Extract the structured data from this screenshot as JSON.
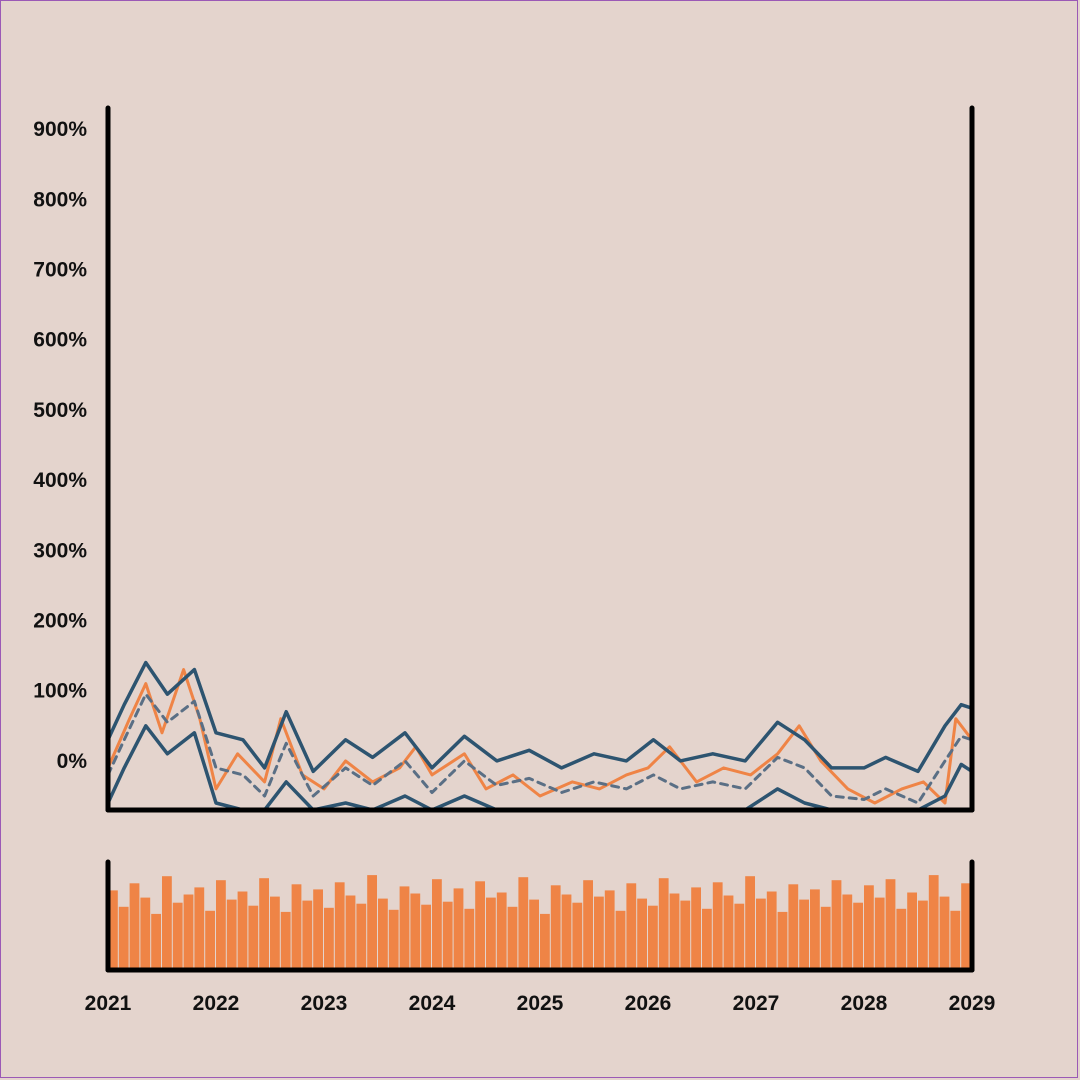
{
  "colors": {
    "background": "#e4d4cd",
    "raw_series": "#ef8446",
    "band": "#2d5470",
    "mean": "#5a6f85",
    "bars": "#ef8446",
    "axes": "#000000"
  },
  "chart_data": [
    {
      "type": "line",
      "title": "",
      "xlabel": "",
      "ylabel": "",
      "ylim": [
        -70,
        930
      ],
      "xlim": [
        2021,
        2029
      ],
      "y_ticks": [
        0,
        100,
        200,
        300,
        400,
        500,
        600,
        700,
        800,
        900
      ],
      "y_tick_labels": [
        "0%",
        "100%",
        "200%",
        "300%",
        "400%",
        "500%",
        "600%",
        "700%",
        "800%",
        "900%"
      ],
      "grid": false,
      "series": [
        {
          "role": "raw",
          "x": [
            2021.0,
            2021.2,
            2021.35,
            2021.5,
            2021.7,
            2021.85,
            2022.0,
            2022.2,
            2022.45,
            2022.6,
            2022.8,
            2023.0,
            2023.2,
            2023.45,
            2023.7,
            2023.85,
            2024.0,
            2024.3,
            2024.5,
            2024.75,
            2025.0,
            2025.3,
            2025.55,
            2025.8,
            2026.0,
            2026.2,
            2026.45,
            2026.7,
            2026.95,
            2027.2,
            2027.4,
            2027.6,
            2027.85,
            2028.1,
            2028.35,
            2028.55,
            2028.75,
            2028.85,
            2029.0
          ],
          "y": [
            -10,
            60,
            110,
            40,
            130,
            60,
            -40,
            10,
            -30,
            60,
            -20,
            -40,
            0,
            -30,
            -10,
            20,
            -20,
            10,
            -40,
            -20,
            -50,
            -30,
            -40,
            -20,
            -10,
            20,
            -30,
            -10,
            -20,
            10,
            50,
            0,
            -40,
            -60,
            -40,
            -30,
            -60,
            60,
            30
          ]
        },
        {
          "role": "upper-band",
          "x": [
            2021.0,
            2021.15,
            2021.35,
            2021.55,
            2021.8,
            2022.0,
            2022.25,
            2022.45,
            2022.65,
            2022.9,
            2023.2,
            2023.45,
            2023.75,
            2024.0,
            2024.3,
            2024.6,
            2024.9,
            2025.2,
            2025.5,
            2025.8,
            2026.05,
            2026.3,
            2026.6,
            2026.9,
            2027.2,
            2027.45,
            2027.7,
            2028.0,
            2028.2,
            2028.5,
            2028.75,
            2028.9,
            2029.0
          ],
          "y": [
            30,
            80,
            140,
            95,
            130,
            40,
            30,
            -10,
            70,
            -15,
            30,
            5,
            40,
            -10,
            35,
            0,
            15,
            -10,
            10,
            0,
            30,
            0,
            10,
            0,
            55,
            30,
            -10,
            -10,
            5,
            -15,
            50,
            80,
            75
          ]
        },
        {
          "role": "mean",
          "x": [
            2021.0,
            2021.15,
            2021.35,
            2021.55,
            2021.8,
            2022.0,
            2022.25,
            2022.45,
            2022.65,
            2022.9,
            2023.2,
            2023.45,
            2023.75,
            2024.0,
            2024.3,
            2024.6,
            2024.9,
            2025.2,
            2025.5,
            2025.8,
            2026.05,
            2026.3,
            2026.6,
            2026.9,
            2027.2,
            2027.45,
            2027.7,
            2028.0,
            2028.2,
            2028.5,
            2028.75,
            2028.9,
            2029.0
          ],
          "y": [
            -20,
            30,
            95,
            55,
            85,
            -10,
            -20,
            -50,
            25,
            -50,
            -10,
            -35,
            0,
            -45,
            0,
            -35,
            -25,
            -45,
            -30,
            -40,
            -20,
            -40,
            -30,
            -40,
            5,
            -10,
            -50,
            -55,
            -40,
            -60,
            0,
            35,
            30
          ]
        },
        {
          "role": "lower-band",
          "x": [
            2021.0,
            2021.15,
            2021.35,
            2021.55,
            2021.8,
            2022.0,
            2022.25,
            2022.45,
            2022.65,
            2022.9,
            2023.2,
            2023.45,
            2023.75,
            2024.0,
            2024.3,
            2024.6,
            2024.9,
            2025.2,
            2025.5,
            2025.8,
            2026.05,
            2026.3,
            2026.6,
            2026.9,
            2027.2,
            2027.45,
            2027.7,
            2028.0,
            2028.2,
            2028.5,
            2028.75,
            2028.9,
            2029.0
          ],
          "y": [
            -60,
            -10,
            50,
            10,
            40,
            -60,
            -70,
            -70,
            -30,
            -70,
            -60,
            -70,
            -50,
            -70,
            -50,
            -70,
            -70,
            -70,
            -70,
            -70,
            -70,
            -70,
            -70,
            -70,
            -40,
            -60,
            -70,
            -70,
            -70,
            -70,
            -50,
            -5,
            -15
          ]
        }
      ]
    },
    {
      "type": "bar",
      "role": "navigator",
      "xlabel": "",
      "ylabel": "",
      "x_tick_labels": [
        "2021",
        "2022",
        "2023",
        "2024",
        "2025",
        "2026",
        "2027",
        "2028",
        "2029"
      ],
      "ylim": [
        0,
        1
      ],
      "values": [
        0.78,
        0.62,
        0.85,
        0.71,
        0.55,
        0.92,
        0.66,
        0.74,
        0.81,
        0.58,
        0.88,
        0.69,
        0.77,
        0.63,
        0.9,
        0.72,
        0.57,
        0.84,
        0.68,
        0.79,
        0.61,
        0.86,
        0.73,
        0.65,
        0.93,
        0.7,
        0.59,
        0.82,
        0.75,
        0.64,
        0.89,
        0.67,
        0.8,
        0.6,
        0.87,
        0.71,
        0.76,
        0.62,
        0.91,
        0.69,
        0.55,
        0.83,
        0.74,
        0.66,
        0.88,
        0.72,
        0.78,
        0.58,
        0.85,
        0.7,
        0.63,
        0.9,
        0.75,
        0.68,
        0.81,
        0.6,
        0.86,
        0.73,
        0.65,
        0.92,
        0.7,
        0.77,
        0.57,
        0.84,
        0.69,
        0.79,
        0.62,
        0.88,
        0.74,
        0.66,
        0.83,
        0.71,
        0.89,
        0.6,
        0.76,
        0.68,
        0.93,
        0.72,
        0.58,
        0.85
      ]
    }
  ]
}
